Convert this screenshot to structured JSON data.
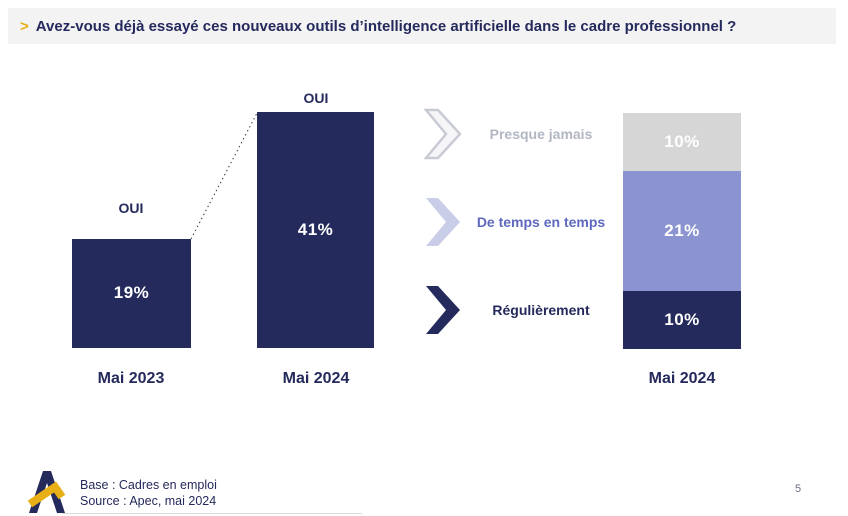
{
  "title": {
    "marker": ">",
    "text": "Avez-vous déjà essayé ces nouveaux outils d’intelligence artificielle dans le cadre professionnel ?"
  },
  "chart_data": [
    {
      "type": "bar",
      "name": "oui-evolution",
      "categories": [
        "Mai 2023",
        "Mai 2024"
      ],
      "values": [
        19,
        41
      ],
      "value_labels": [
        "19%",
        "41%"
      ],
      "bar_top_labels": [
        "OUI",
        "OUI"
      ],
      "unit": "%",
      "ylim": [
        0,
        45
      ],
      "grid": false,
      "bar_color": "#252a5c",
      "annotation": "dotted line connects top of Mai 2023 bar to top of Mai 2024 bar"
    },
    {
      "type": "bar",
      "subtype": "stacked",
      "name": "frequence-utilisation",
      "categories": [
        "Mai 2024"
      ],
      "series": [
        {
          "name": "Presque jamais",
          "value": 10,
          "label": "10%",
          "color": "#d6d6d6"
        },
        {
          "name": "De temps en temps",
          "value": 21,
          "label": "21%",
          "color": "#8b93d1"
        },
        {
          "name": "Régulièrement",
          "value": 10,
          "label": "10%",
          "color": "#252a5c"
        }
      ],
      "unit": "%",
      "legend_position": "left",
      "grid": false
    }
  ],
  "footer": {
    "base": "Base : Cadres en emploi",
    "source": "Source : Apec, mai 2024",
    "page": "5"
  },
  "colors": {
    "navy": "#252a5c",
    "periwinkle": "#8b93d1",
    "periwinkle_light": "#c9cde8",
    "segment_gray": "#d6d6d6",
    "gold_accent": "#e9af16",
    "title_background": "#f3f3f4",
    "bar_value_text": "#ffffff",
    "label_gray": "#b3b6c4",
    "label_periwinkle": "#5d68be"
  }
}
